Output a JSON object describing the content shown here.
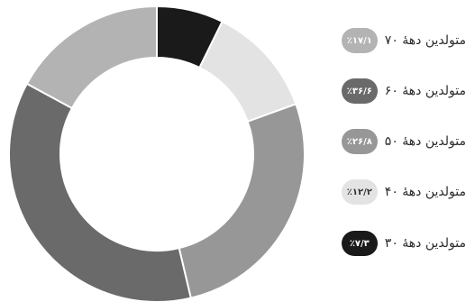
{
  "chart_data": {
    "type": "pie",
    "variant": "donut",
    "series": [
      {
        "name": "متولدین دهۀ ۳۰",
        "value": 7.3,
        "badge": "٪۷/۳",
        "color": "#1a1a1a",
        "badge_text_color": "#ffffff"
      },
      {
        "name": "متولدین دهۀ ۴۰",
        "value": 12.2,
        "badge": "٪۱۲/۲",
        "color": "#e3e3e3",
        "badge_text_color": "#333333"
      },
      {
        "name": "متولدین دهۀ ۵۰",
        "value": 26.8,
        "badge": "٪۲۶/۸",
        "color": "#979797",
        "badge_text_color": "#ffffff"
      },
      {
        "name": "متولدین دهۀ ۶۰",
        "value": 36.6,
        "badge": "٪۳۶/۶",
        "color": "#6a6a6a",
        "badge_text_color": "#ffffff"
      },
      {
        "name": "متولدین دهۀ ۷۰",
        "value": 17.1,
        "badge": "٪۱۷/۱",
        "color": "#b3b3b3",
        "badge_text_color": "#ffffff"
      }
    ],
    "legend_order": [
      4,
      3,
      2,
      1,
      0
    ],
    "start": "top",
    "direction": "clockwise",
    "legend_position": "right"
  }
}
